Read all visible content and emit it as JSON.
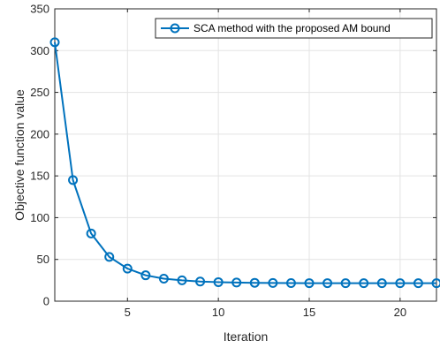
{
  "chart_data": {
    "type": "line",
    "title": "",
    "xlabel": "Iteration",
    "ylabel": "Objective function value",
    "xlim": [
      1,
      22
    ],
    "ylim": [
      0,
      350
    ],
    "xticks": [
      5,
      10,
      15,
      20
    ],
    "yticks": [
      0,
      50,
      100,
      150,
      200,
      250,
      300,
      350
    ],
    "grid": true,
    "legend_position": "top-right",
    "series": [
      {
        "name": "SCA method with the proposed AM bound",
        "color": "#0072BD",
        "marker": "circle",
        "x": [
          1,
          2,
          3,
          4,
          5,
          6,
          7,
          8,
          9,
          10,
          11,
          12,
          13,
          14,
          15,
          16,
          17,
          18,
          19,
          20,
          21,
          22
        ],
        "y": [
          310,
          145,
          81,
          53,
          39,
          31,
          27,
          25,
          23.5,
          22.8,
          22.3,
          22,
          21.8,
          21.7,
          21.6,
          21.6,
          21.5,
          21.5,
          21.5,
          21.5,
          21.5,
          21.5
        ]
      }
    ]
  }
}
